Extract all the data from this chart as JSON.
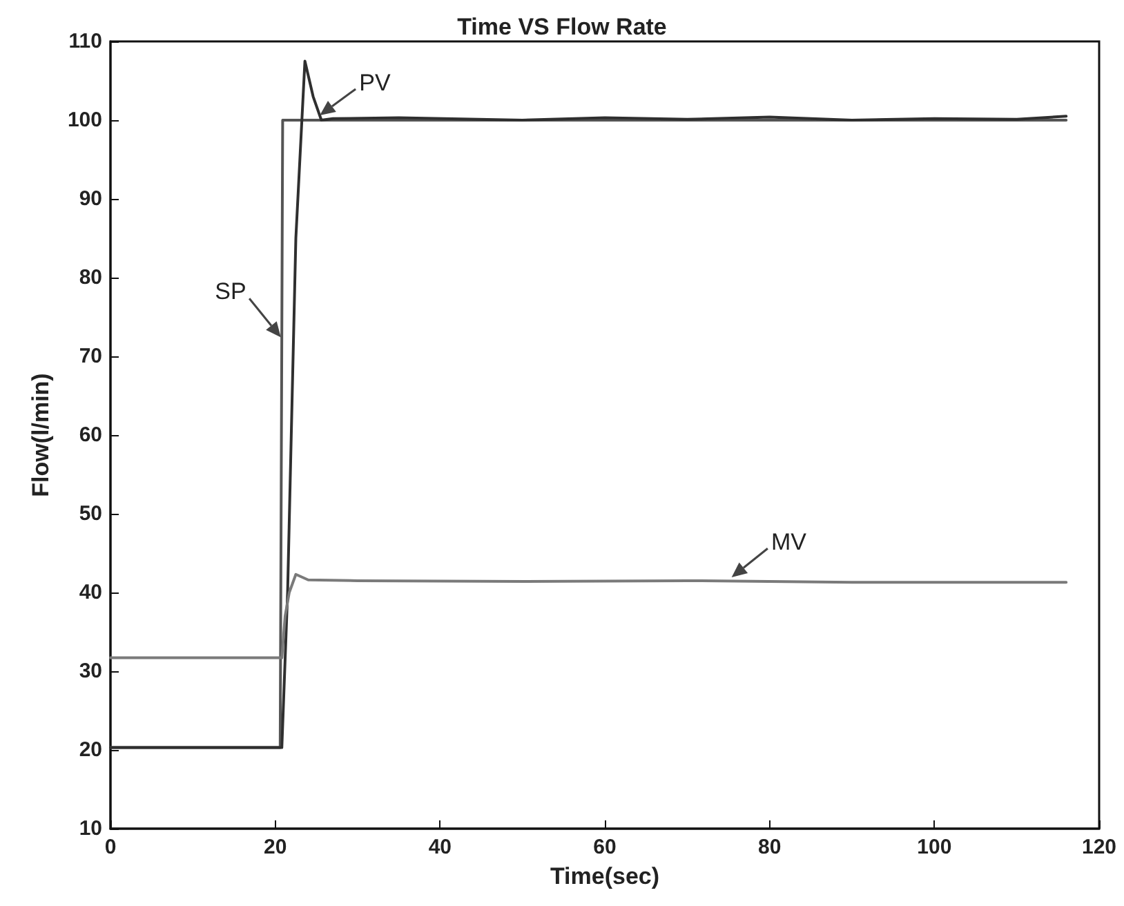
{
  "chart_data": {
    "type": "line",
    "title": "Time VS Flow Rate",
    "xlabel": "Time(sec)",
    "ylabel": "Flow(l/min)",
    "xlim": [
      0,
      120
    ],
    "xticks": [
      0,
      20,
      40,
      60,
      80,
      100,
      120
    ],
    "ylim": [
      10,
      110
    ],
    "yticks": [
      10,
      20,
      30,
      40,
      50,
      60,
      70,
      80,
      90,
      100,
      110
    ],
    "grid": false,
    "marker": "none",
    "line_style": "solid",
    "series": [
      {
        "color": "#555555",
        "x": [
          0,
          20.6,
          20.9,
          116
        ],
        "values": [
          20.3,
          20.3,
          100,
          100
        ]
      },
      {
        "color": "#2f2f2f",
        "x": [
          0,
          20.8,
          21.5,
          22.5,
          23.6,
          24.6,
          25.6,
          27,
          35,
          50,
          60,
          70,
          80,
          90,
          100,
          110,
          116
        ],
        "values": [
          20.3,
          20.3,
          40,
          85,
          107.5,
          103,
          100,
          100.2,
          100.3,
          100,
          100.3,
          100.1,
          100.4,
          100,
          100.2,
          100.1,
          100.5
        ]
      },
      {
        "color": "#7a7a7a",
        "x": [
          0,
          20.8,
          21.2,
          21.7,
          22.5,
          24,
          30,
          50,
          70,
          90,
          116
        ],
        "values": [
          31.7,
          31.7,
          37,
          40,
          42.3,
          41.6,
          41.5,
          41.4,
          41.5,
          41.3,
          41.3
        ]
      }
    ],
    "annotations": [
      {
        "text": "SP",
        "x": 21,
        "y": 72
      },
      {
        "text": "PV",
        "x": 25,
        "y": 100.3
      },
      {
        "text": "MV",
        "x": 75,
        "y": 41.6
      }
    ]
  }
}
